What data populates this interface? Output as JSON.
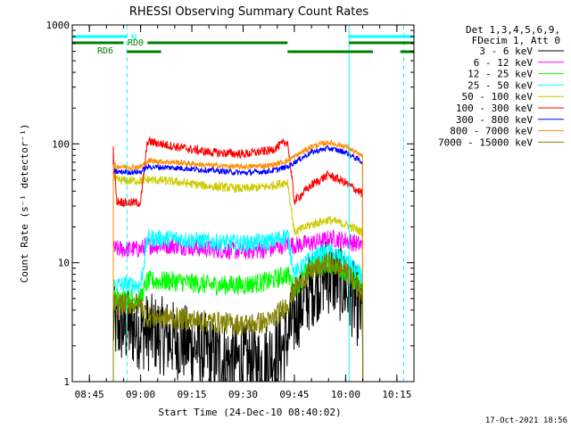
{
  "chart_data": {
    "type": "line",
    "title": "RHESSI Observing Summary Count Rates",
    "xlabel": "Start Time (24-Dec-10 08:40:02)",
    "ylabel": "Count Rate (s⁻¹ detector⁻¹)",
    "x_scale": "time",
    "y_scale": "log",
    "xlim": [
      "08:40",
      "10:20"
    ],
    "ylim": [
      1,
      1000
    ],
    "x_ticks": [
      "08:45",
      "09:00",
      "09:15",
      "09:30",
      "09:45",
      "10:00",
      "10:15"
    ],
    "y_ticks": [
      "1",
      "10",
      "100",
      "1000"
    ],
    "legend_header": [
      "Det 1,3,4,5,6,9,",
      "FDecim 1, Att 0"
    ],
    "legend_position": "right",
    "timestamp": "17-Oct-2021 18:56",
    "data_start": "08:52",
    "data_end": "10:05",
    "time_markers": [
      {
        "time": "08:40",
        "style": "solid",
        "color": "#00ffff"
      },
      {
        "time": "08:56",
        "style": "dashed",
        "color": "#00ffff"
      },
      {
        "time": "10:01",
        "style": "solid",
        "color": "#00ffff"
      },
      {
        "time": "10:17",
        "style": "dashed",
        "color": "#00ffff"
      }
    ],
    "flag_bars": [
      {
        "label": "N",
        "color": "#00ffff",
        "segments": [
          [
            "08:40",
            "08:56"
          ],
          [
            "10:01",
            "10:20"
          ]
        ],
        "level": 3
      },
      {
        "label": "RD0",
        "color": "#008000",
        "segments": [
          [
            "08:40",
            "08:55"
          ],
          [
            "09:02",
            "09:43"
          ],
          [
            "10:01",
            "10:20"
          ]
        ],
        "level": 2
      },
      {
        "label": "RD6",
        "color": "#008000",
        "segments": [
          [
            "08:56",
            "09:06"
          ],
          [
            "09:43",
            "10:08"
          ],
          [
            "10:16",
            "10:20"
          ]
        ],
        "level": 1
      }
    ],
    "series": [
      {
        "name": "3 - 6 keV",
        "color": "#000000",
        "x": [
          "08:52",
          "08:56",
          "08:58",
          "09:02",
          "09:05",
          "09:15",
          "09:25",
          "09:35",
          "09:42",
          "09:46",
          "09:50",
          "09:54",
          "09:58",
          "10:02",
          "10:05"
        ],
        "values": [
          3.0,
          2.8,
          2.8,
          2.6,
          2.5,
          2.0,
          1.5,
          1.4,
          2.0,
          4.0,
          6.0,
          8.0,
          7.0,
          5.0,
          3.5
        ],
        "noise": 0.35
      },
      {
        "name": "6 - 12 keV",
        "color": "#ff00ff",
        "x": [
          "08:52",
          "08:56",
          "09:00",
          "09:02",
          "09:10",
          "09:20",
          "09:30",
          "09:38",
          "09:43",
          "09:45",
          "09:52",
          "09:56",
          "10:00",
          "10:05"
        ],
        "values": [
          13.0,
          13.0,
          13.0,
          14.0,
          14.0,
          13.0,
          12.5,
          13.0,
          14.5,
          14.0,
          15.0,
          16.0,
          15.5,
          14.0
        ],
        "noise": 0.08
      },
      {
        "name": "12 - 25 keV",
        "color": "#00ff00",
        "x": [
          "08:52",
          "08:56",
          "09:00",
          "09:02",
          "09:10",
          "09:20",
          "09:30",
          "09:38",
          "09:43",
          "09:45",
          "09:50",
          "09:55",
          "10:00",
          "10:05"
        ],
        "values": [
          5.0,
          5.0,
          5.0,
          7.0,
          7.0,
          6.5,
          6.5,
          7.0,
          8.0,
          6.0,
          9.0,
          10.0,
          8.5,
          6.0
        ],
        "noise": 0.09
      },
      {
        "name": "25 - 50 keV",
        "color": "#00ffff",
        "x": [
          "08:52",
          "08:56",
          "09:00",
          "09:02",
          "09:10",
          "09:20",
          "09:30",
          "09:38",
          "09:43",
          "09:45",
          "09:50",
          "09:55",
          "10:00",
          "10:05"
        ],
        "values": [
          6.5,
          6.5,
          6.5,
          16.0,
          16.0,
          15.0,
          14.5,
          15.0,
          17.0,
          8.0,
          11.0,
          12.5,
          10.5,
          7.5
        ],
        "noise": 0.08
      },
      {
        "name": "50 - 100 keV",
        "color": "#cccc00",
        "x": [
          "08:52",
          "08:56",
          "09:00",
          "09:02",
          "09:10",
          "09:20",
          "09:30",
          "09:38",
          "09:43",
          "09:45",
          "09:50",
          "09:55",
          "10:00",
          "10:05"
        ],
        "values": [
          50.0,
          49.0,
          49.0,
          50.0,
          48.0,
          44.0,
          42.0,
          44.0,
          48.0,
          18.0,
          21.0,
          23.0,
          21.0,
          18.0
        ],
        "noise": 0.04
      },
      {
        "name": "100 - 300 keV",
        "color": "#ff0000",
        "x": [
          "08:52",
          "08:53",
          "08:56",
          "09:00",
          "09:02",
          "09:10",
          "09:20",
          "09:30",
          "09:38",
          "09:43",
          "09:45",
          "09:50",
          "09:55",
          "10:00",
          "10:05"
        ],
        "values": [
          90.0,
          33.0,
          32.0,
          32.0,
          105.0,
          95.0,
          85.0,
          82.0,
          88.0,
          105.0,
          33.0,
          45.0,
          55.0,
          47.0,
          38.0
        ],
        "noise": 0.04
      },
      {
        "name": "300 - 800 keV",
        "color": "#0000ff",
        "x": [
          "08:52",
          "08:56",
          "09:00",
          "09:02",
          "09:10",
          "09:20",
          "09:30",
          "09:38",
          "09:43",
          "09:45",
          "09:50",
          "09:55",
          "10:00",
          "10:05"
        ],
        "values": [
          58.0,
          58.0,
          58.0,
          64.0,
          63.0,
          60.0,
          57.0,
          59.0,
          64.0,
          70.0,
          85.0,
          92.0,
          85.0,
          70.0
        ],
        "noise": 0.025
      },
      {
        "name": "800 - 7000 keV",
        "color": "#ff8c00",
        "x": [
          "08:52",
          "08:56",
          "09:00",
          "09:02",
          "09:10",
          "09:20",
          "09:30",
          "09:38",
          "09:43",
          "09:45",
          "09:50",
          "09:55",
          "10:00",
          "10:05"
        ],
        "values": [
          65.0,
          64.0,
          64.0,
          72.0,
          70.0,
          66.0,
          64.0,
          66.0,
          72.0,
          78.0,
          95.0,
          103.0,
          95.0,
          78.0
        ],
        "noise": 0.025
      },
      {
        "name": "7000 - 15000 keV",
        "color": "#808000",
        "x": [
          "08:52",
          "08:56",
          "09:00",
          "09:02",
          "09:10",
          "09:20",
          "09:30",
          "09:38",
          "09:43",
          "09:45",
          "09:50",
          "09:55",
          "10:00",
          "10:05"
        ],
        "values": [
          4.5,
          4.5,
          4.5,
          3.5,
          3.4,
          3.2,
          3.0,
          3.2,
          4.5,
          6.0,
          8.5,
          10.0,
          8.5,
          5.5
        ],
        "noise": 0.1
      }
    ]
  }
}
